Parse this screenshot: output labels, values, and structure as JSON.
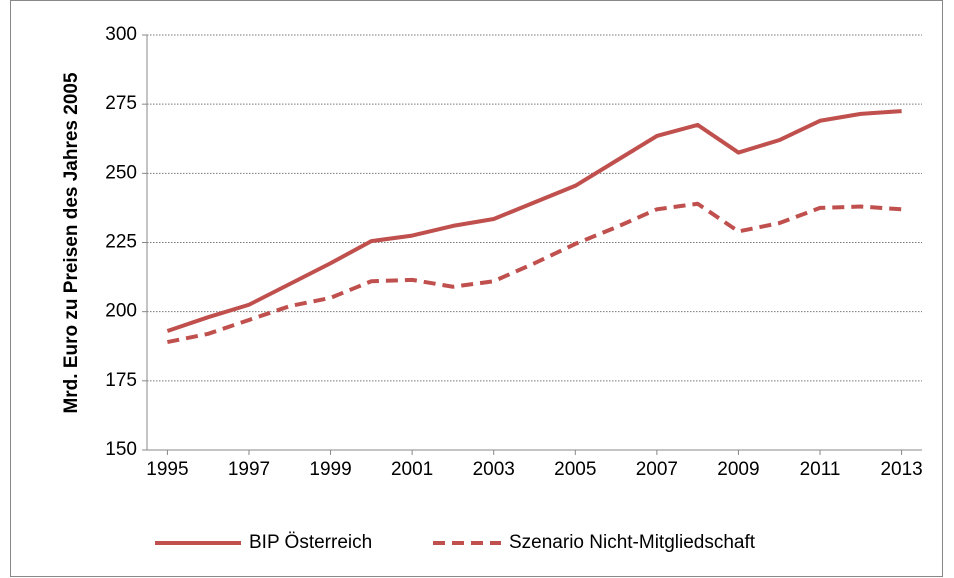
{
  "chart_data": {
    "type": "line",
    "y_label": "Mrd. Euro zu Preisen des Jahres 2005",
    "x": [
      1995,
      1996,
      1997,
      1998,
      1999,
      2000,
      2001,
      2002,
      2003,
      2004,
      2005,
      2006,
      2007,
      2008,
      2009,
      2010,
      2011,
      2012,
      2013
    ],
    "series": [
      {
        "name": "BIP Österreich",
        "color": "#c0504d",
        "dash": "solid",
        "values": [
          193,
          198,
          202.5,
          210,
          217.5,
          225.5,
          227.5,
          231,
          233.5,
          239.5,
          245.5,
          254.5,
          263.5,
          267.5,
          257.5,
          262,
          269,
          271.5,
          272.5
        ]
      },
      {
        "name": "Szenario Nicht-Mitgliedschaft",
        "color": "#c0504d",
        "dash": "dashed",
        "values": [
          189,
          192,
          197,
          202,
          205,
          211,
          211.5,
          209,
          211,
          217.5,
          224.5,
          230.5,
          237,
          239,
          229,
          232,
          237.5,
          238,
          237
        ]
      }
    ],
    "xlim": [
      1994.5,
      2013.5
    ],
    "xticks": [
      1995,
      1997,
      1999,
      2001,
      2003,
      2005,
      2007,
      2009,
      2011,
      2013
    ],
    "ylim": [
      150,
      300
    ],
    "yticks": [
      150,
      175,
      200,
      225,
      250,
      275,
      300
    ],
    "grid": true,
    "legend": "bottom"
  }
}
